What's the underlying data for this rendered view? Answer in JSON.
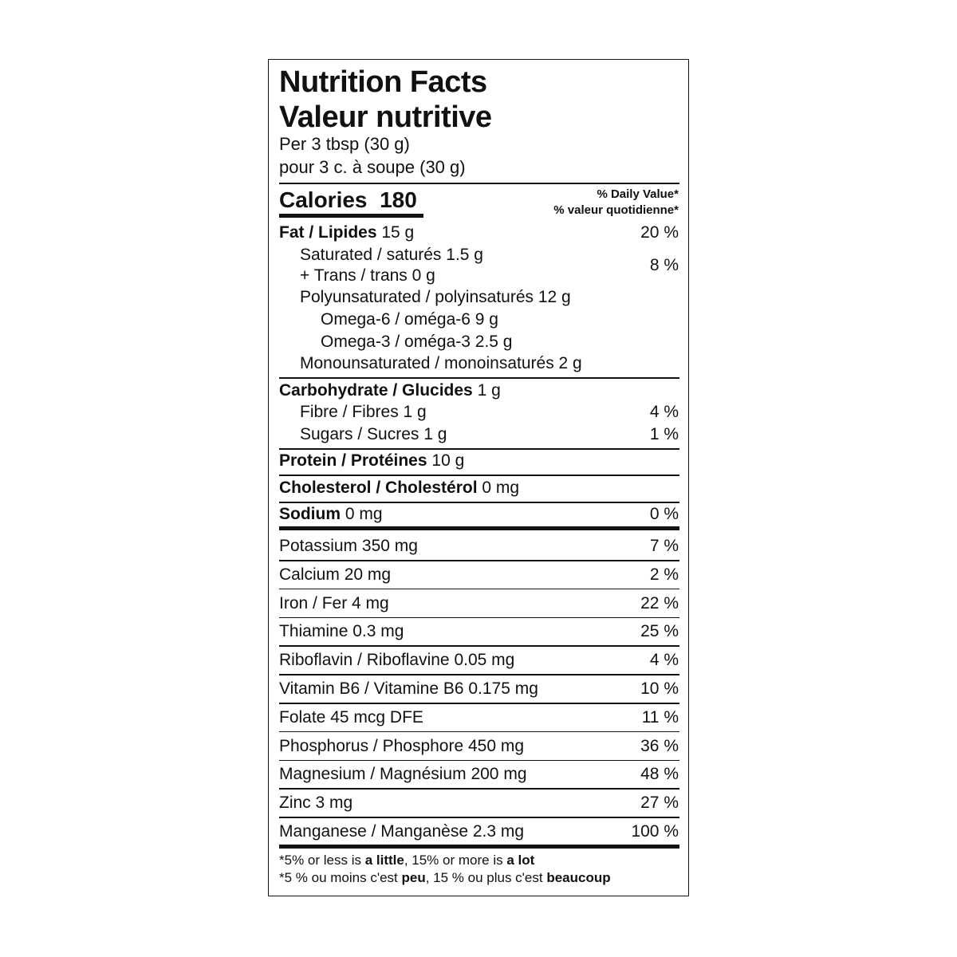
{
  "title_en": "Nutrition Facts",
  "title_fr": "Valeur nutritive",
  "serving_en": "Per 3 tbsp (30 g)",
  "serving_fr": "pour 3 c. à soupe (30 g)",
  "calories": {
    "label": "Calories",
    "value": "180"
  },
  "dv_header": {
    "en": "% Daily Value*",
    "fr": "% valeur quotidienne*"
  },
  "fat": {
    "name": "Fat / Lipides",
    "amount": "15 g",
    "dv": "20 %"
  },
  "saturated": {
    "name": "Saturated / saturés",
    "amount": "1.5 g"
  },
  "trans": {
    "name": "+ Trans / trans",
    "amount": "0 g"
  },
  "sat_trans_dv": "8 %",
  "poly": {
    "name": "Polyunsaturated / polyinsaturés",
    "amount": "12 g"
  },
  "omega6": {
    "name": "Omega-6 / oméga-6",
    "amount": "9 g"
  },
  "omega3": {
    "name": "Omega-3 / oméga-3",
    "amount": "2.5 g"
  },
  "mono": {
    "name": "Monounsaturated / monoinsaturés",
    "amount": "2 g"
  },
  "carb": {
    "name": "Carbohydrate / Glucides",
    "amount": "1 g"
  },
  "fibre": {
    "name": "Fibre / Fibres",
    "amount": "1 g",
    "dv": "4 %"
  },
  "sugars": {
    "name": "Sugars / Sucres",
    "amount": "1 g",
    "dv": "1 %"
  },
  "protein": {
    "name": "Protein / Protéines",
    "amount": "10 g"
  },
  "cholesterol": {
    "name": "Cholesterol / Cholestérol",
    "amount": "0 mg"
  },
  "sodium": {
    "name": "Sodium",
    "amount": "0 mg",
    "dv": "0 %"
  },
  "minerals": [
    {
      "name": "Potassium",
      "amount": "350 mg",
      "dv": "7 %"
    },
    {
      "name": "Calcium",
      "amount": "20 mg",
      "dv": "2 %"
    },
    {
      "name": "Iron / Fer",
      "amount": "4 mg",
      "dv": "22 %"
    },
    {
      "name": "Thiamine",
      "amount": "0.3 mg",
      "dv": "25 %"
    },
    {
      "name": "Riboflavin / Riboflavine",
      "amount": "0.05 mg",
      "dv": "4 %"
    },
    {
      "name": "Vitamin B6 / Vitamine B6",
      "amount": "0.175 mg",
      "dv": "10 %"
    },
    {
      "name": "Folate",
      "amount": "45 mcg DFE",
      "dv": "11 %"
    },
    {
      "name": "Phosphorus / Phosphore",
      "amount": "450 mg",
      "dv": "36 %"
    },
    {
      "name": "Magnesium / Magnésium",
      "amount": "200 mg",
      "dv": "48 %"
    },
    {
      "name": "Zinc",
      "amount": "3 mg",
      "dv": "27 %"
    },
    {
      "name": "Manganese / Manganèse",
      "amount": "2.3 mg",
      "dv": "100 %"
    }
  ],
  "footnote_en": {
    "a": "*5% or less is ",
    "b": "a little",
    "c": ", 15% or more is ",
    "d": "a lot"
  },
  "footnote_fr": {
    "a": "*5 % ou moins c'est ",
    "b": "peu",
    "c": ", 15 % ou plus c'est ",
    "d": "beaucoup"
  }
}
